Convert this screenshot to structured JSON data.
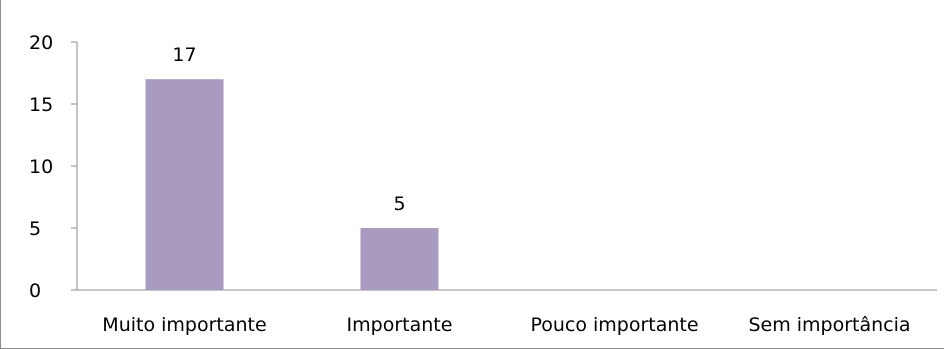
{
  "chart_data": {
    "type": "bar",
    "title": "",
    "categories": [
      "Muito importante",
      "Importante",
      "Pouco importante",
      "Sem importância"
    ],
    "values": [
      17,
      5,
      0,
      0
    ],
    "data_labels": [
      "17",
      "5",
      "",
      ""
    ],
    "yticks": [
      0,
      5,
      10,
      15,
      20
    ],
    "ylim": [
      0,
      20
    ],
    "xlabel": "",
    "ylabel": "",
    "grid": false,
    "legend": "none",
    "bar_color": "#a99bbf"
  }
}
